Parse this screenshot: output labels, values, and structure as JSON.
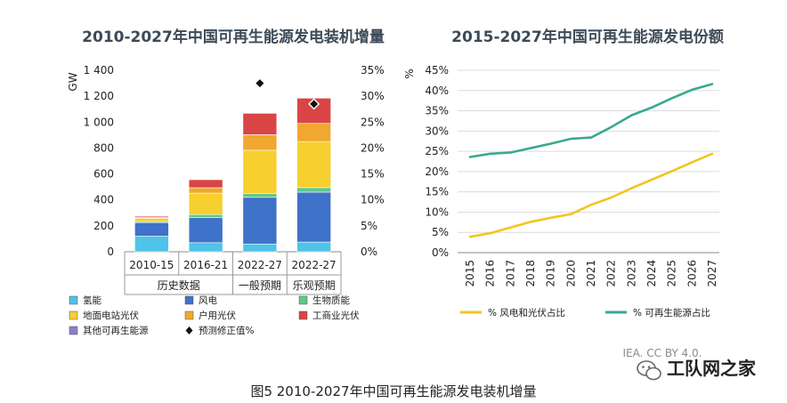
{
  "caption": "图5   2010-2027年中国可再生能源发电装机增量",
  "watermark": "IEA. CC BY 4.0.",
  "logo_text": "工队网之家",
  "chart_data": [
    {
      "type": "bar",
      "title": "2010-2027年中国可再生能源发电装机增量",
      "ylabel": "GW",
      "ylim": [
        0,
        1400
      ],
      "yticks": [
        0,
        200,
        400,
        600,
        800,
        1000,
        1200,
        1400
      ],
      "ytick_labels": [
        "0",
        "200",
        "400",
        "600",
        "800",
        "1 000",
        "1 200",
        "1 400"
      ],
      "y2lim": [
        0,
        35
      ],
      "y2ticks": [
        0,
        5,
        10,
        15,
        20,
        25,
        30,
        35
      ],
      "y2tick_labels": [
        "0%",
        "5%",
        "10%",
        "15%",
        "20%",
        "25%",
        "30%",
        "35%"
      ],
      "categories": [
        "2010-15",
        "2016-21",
        "2022-27",
        "2022-27"
      ],
      "groups": [
        {
          "label": "历史数据",
          "span": [
            0,
            1
          ]
        },
        {
          "label": "一般预期",
          "span": [
            2,
            2
          ]
        },
        {
          "label": "乐观预期",
          "span": [
            3,
            3
          ]
        }
      ],
      "series": [
        {
          "name": "氢能",
          "color": "#4fc3e8",
          "values": [
            120,
            70,
            60,
            75
          ]
        },
        {
          "name": "风电",
          "color": "#3f72c9",
          "values": [
            105,
            195,
            360,
            385
          ]
        },
        {
          "name": "生物质能",
          "color": "#5fc88a",
          "values": [
            8,
            22,
            28,
            35
          ]
        },
        {
          "name": "地面电站光伏",
          "color": "#f7cf2e",
          "values": [
            25,
            165,
            335,
            355
          ]
        },
        {
          "name": "户用光伏",
          "color": "#f0a830",
          "values": [
            8,
            42,
            120,
            140
          ]
        },
        {
          "name": "工商业光伏",
          "color": "#d94545",
          "values": [
            8,
            62,
            165,
            195
          ]
        },
        {
          "name": "其他可再生能源",
          "color": "#8a7fd0",
          "values": [
            0,
            0,
            0,
            0
          ]
        }
      ],
      "markers": {
        "name": "预测修正值%",
        "values": [
          null,
          null,
          32.5,
          28.5
        ]
      }
    },
    {
      "type": "line",
      "title": "2015-2027年中国可再生能源发电份额",
      "ylabel": "%",
      "ylim": [
        0,
        45
      ],
      "yticks": [
        0,
        5,
        10,
        15,
        20,
        25,
        30,
        35,
        40,
        45
      ],
      "ytick_labels": [
        "0%",
        "5%",
        "10%",
        "15%",
        "20%",
        "25%",
        "30%",
        "35%",
        "40%",
        "45%"
      ],
      "x": [
        "2015",
        "2016",
        "2017",
        "2018",
        "2019",
        "2020",
        "2021",
        "2022",
        "2023",
        "2024",
        "2025",
        "2026",
        "2027"
      ],
      "series": [
        {
          "name": "% 风电和光伏占比",
          "color": "#f2c51f",
          "values": [
            3.9,
            4.8,
            6.2,
            7.6,
            8.6,
            9.5,
            11.8,
            13.6,
            15.9,
            18.0,
            20.1,
            22.3,
            24.4
          ]
        },
        {
          "name": "% 可再生能源占比",
          "color": "#3aa890",
          "values": [
            23.6,
            24.4,
            24.7,
            25.8,
            26.9,
            28.1,
            28.4,
            31.0,
            33.9,
            35.8,
            38.1,
            40.2,
            41.6
          ]
        }
      ]
    }
  ]
}
